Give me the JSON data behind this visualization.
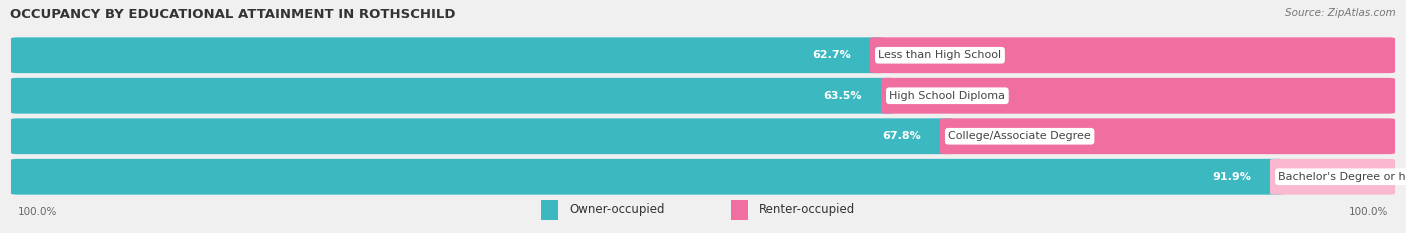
{
  "title": "OCCUPANCY BY EDUCATIONAL ATTAINMENT IN ROTHSCHILD",
  "source": "Source: ZipAtlas.com",
  "categories": [
    "Less than High School",
    "High School Diploma",
    "College/Associate Degree",
    "Bachelor's Degree or higher"
  ],
  "owner_values": [
    62.7,
    63.5,
    67.8,
    91.9
  ],
  "renter_values": [
    37.3,
    36.5,
    32.2,
    8.1
  ],
  "owner_color": "#3cb8c0",
  "renter_color": "#f06fa0",
  "renter_color_light": "#f9b8d0",
  "owner_label": "Owner-occupied",
  "renter_label": "Renter-occupied",
  "axis_left_label": "100.0%",
  "axis_right_label": "100.0%",
  "title_fontsize": 9.5,
  "source_fontsize": 7.5,
  "bar_label_fontsize": 8,
  "cat_label_fontsize": 8,
  "legend_fontsize": 8.5,
  "background_color": "#f0f0f0",
  "row_bg_color": "#f8f8f8"
}
